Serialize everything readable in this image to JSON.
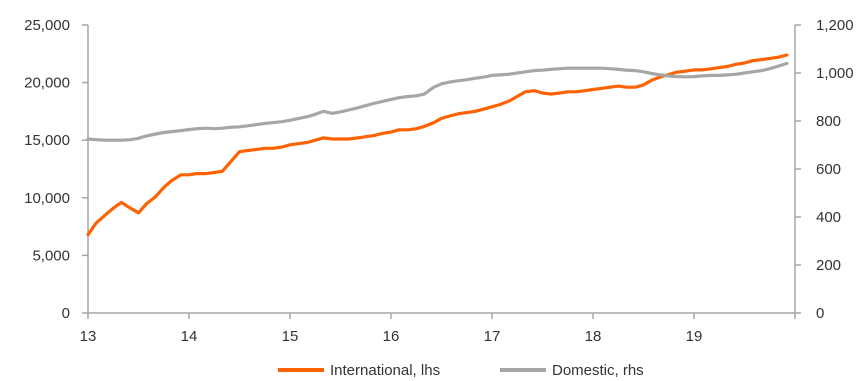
{
  "chart_data": {
    "type": "line",
    "title": "",
    "xlabel": "",
    "ylabel_left": "",
    "ylabel_right": "",
    "x_ticks": [
      "13",
      "14",
      "15",
      "16",
      "17",
      "18",
      "19"
    ],
    "xlim": [
      13,
      20
    ],
    "left_axis": {
      "ylim": [
        0,
        25000
      ],
      "ticks": [
        "0",
        "5,000",
        "10,000",
        "15,000",
        "20,000",
        "25,000"
      ]
    },
    "right_axis": {
      "ylim": [
        0,
        1200
      ],
      "ticks": [
        "0",
        "200",
        "400",
        "600",
        "800",
        "1,000",
        "1,200"
      ]
    },
    "grid": false,
    "legend_position": "bottom",
    "series": [
      {
        "name": "International, lhs",
        "axis": "left",
        "color": "#ff6200",
        "points": [
          [
            13.0,
            6800
          ],
          [
            13.08,
            7800
          ],
          [
            13.17,
            8500
          ],
          [
            13.25,
            9100
          ],
          [
            13.33,
            9600
          ],
          [
            13.42,
            9100
          ],
          [
            13.5,
            8700
          ],
          [
            13.58,
            9500
          ],
          [
            13.67,
            10100
          ],
          [
            13.75,
            10900
          ],
          [
            13.83,
            11500
          ],
          [
            13.92,
            12000
          ],
          [
            14.0,
            12000
          ],
          [
            14.08,
            12100
          ],
          [
            14.17,
            12100
          ],
          [
            14.25,
            12200
          ],
          [
            14.33,
            12300
          ],
          [
            14.42,
            13200
          ],
          [
            14.5,
            14000
          ],
          [
            14.58,
            14100
          ],
          [
            14.67,
            14200
          ],
          [
            14.75,
            14300
          ],
          [
            14.83,
            14300
          ],
          [
            14.92,
            14400
          ],
          [
            15.0,
            14600
          ],
          [
            15.08,
            14700
          ],
          [
            15.17,
            14800
          ],
          [
            15.25,
            15000
          ],
          [
            15.33,
            15200
          ],
          [
            15.42,
            15100
          ],
          [
            15.5,
            15100
          ],
          [
            15.58,
            15100
          ],
          [
            15.67,
            15200
          ],
          [
            15.75,
            15300
          ],
          [
            15.83,
            15400
          ],
          [
            15.92,
            15600
          ],
          [
            16.0,
            15700
          ],
          [
            16.08,
            15900
          ],
          [
            16.17,
            15900
          ],
          [
            16.25,
            16000
          ],
          [
            16.33,
            16200
          ],
          [
            16.42,
            16500
          ],
          [
            16.5,
            16900
          ],
          [
            16.58,
            17100
          ],
          [
            16.67,
            17300
          ],
          [
            16.75,
            17400
          ],
          [
            16.83,
            17500
          ],
          [
            16.92,
            17700
          ],
          [
            17.0,
            17900
          ],
          [
            17.08,
            18100
          ],
          [
            17.17,
            18400
          ],
          [
            17.25,
            18800
          ],
          [
            17.33,
            19200
          ],
          [
            17.42,
            19300
          ],
          [
            17.5,
            19100
          ],
          [
            17.58,
            19000
          ],
          [
            17.67,
            19100
          ],
          [
            17.75,
            19200
          ],
          [
            17.83,
            19200
          ],
          [
            17.92,
            19300
          ],
          [
            18.0,
            19400
          ],
          [
            18.08,
            19500
          ],
          [
            18.17,
            19600
          ],
          [
            18.25,
            19700
          ],
          [
            18.33,
            19600
          ],
          [
            18.42,
            19600
          ],
          [
            18.5,
            19800
          ],
          [
            18.58,
            20200
          ],
          [
            18.67,
            20500
          ],
          [
            18.75,
            20700
          ],
          [
            18.83,
            20900
          ],
          [
            18.92,
            21000
          ],
          [
            19.0,
            21100
          ],
          [
            19.08,
            21100
          ],
          [
            19.17,
            21200
          ],
          [
            19.25,
            21300
          ],
          [
            19.33,
            21400
          ],
          [
            19.42,
            21600
          ],
          [
            19.5,
            21700
          ],
          [
            19.58,
            21900
          ],
          [
            19.67,
            22000
          ],
          [
            19.75,
            22100
          ],
          [
            19.83,
            22200
          ],
          [
            19.92,
            22400
          ]
        ]
      },
      {
        "name": "Domestic, rhs",
        "axis": "right",
        "color": "#a6a6a6",
        "points": [
          [
            13.0,
            725
          ],
          [
            13.08,
            722
          ],
          [
            13.17,
            720
          ],
          [
            13.25,
            720
          ],
          [
            13.33,
            720
          ],
          [
            13.42,
            722
          ],
          [
            13.5,
            728
          ],
          [
            13.58,
            738
          ],
          [
            13.67,
            746
          ],
          [
            13.75,
            752
          ],
          [
            13.83,
            756
          ],
          [
            13.92,
            760
          ],
          [
            14.0,
            764
          ],
          [
            14.08,
            768
          ],
          [
            14.17,
            770
          ],
          [
            14.25,
            768
          ],
          [
            14.33,
            770
          ],
          [
            14.42,
            774
          ],
          [
            14.5,
            776
          ],
          [
            14.58,
            780
          ],
          [
            14.67,
            785
          ],
          [
            14.75,
            790
          ],
          [
            14.83,
            793
          ],
          [
            14.92,
            797
          ],
          [
            15.0,
            803
          ],
          [
            15.08,
            810
          ],
          [
            15.17,
            818
          ],
          [
            15.25,
            828
          ],
          [
            15.33,
            840
          ],
          [
            15.42,
            832
          ],
          [
            15.5,
            838
          ],
          [
            15.58,
            846
          ],
          [
            15.67,
            855
          ],
          [
            15.75,
            864
          ],
          [
            15.83,
            873
          ],
          [
            15.92,
            882
          ],
          [
            16.0,
            890
          ],
          [
            16.08,
            897
          ],
          [
            16.17,
            902
          ],
          [
            16.25,
            905
          ],
          [
            16.33,
            912
          ],
          [
            16.42,
            940
          ],
          [
            16.5,
            955
          ],
          [
            16.58,
            962
          ],
          [
            16.67,
            968
          ],
          [
            16.75,
            972
          ],
          [
            16.83,
            978
          ],
          [
            16.92,
            983
          ],
          [
            17.0,
            990
          ],
          [
            17.08,
            992
          ],
          [
            17.17,
            995
          ],
          [
            17.25,
            1000
          ],
          [
            17.33,
            1005
          ],
          [
            17.42,
            1010
          ],
          [
            17.5,
            1012
          ],
          [
            17.58,
            1015
          ],
          [
            17.67,
            1018
          ],
          [
            17.75,
            1020
          ],
          [
            17.83,
            1020
          ],
          [
            17.92,
            1020
          ],
          [
            18.0,
            1020
          ],
          [
            18.08,
            1020
          ],
          [
            18.17,
            1018
          ],
          [
            18.25,
            1015
          ],
          [
            18.33,
            1012
          ],
          [
            18.42,
            1010
          ],
          [
            18.5,
            1005
          ],
          [
            18.58,
            998
          ],
          [
            18.67,
            992
          ],
          [
            18.75,
            988
          ],
          [
            18.83,
            985
          ],
          [
            18.92,
            984
          ],
          [
            19.0,
            985
          ],
          [
            19.08,
            988
          ],
          [
            19.17,
            990
          ],
          [
            19.25,
            990
          ],
          [
            19.33,
            992
          ],
          [
            19.42,
            995
          ],
          [
            19.5,
            1000
          ],
          [
            19.58,
            1005
          ],
          [
            19.67,
            1010
          ],
          [
            19.75,
            1018
          ],
          [
            19.83,
            1028
          ],
          [
            19.92,
            1040
          ]
        ]
      }
    ]
  },
  "legend": {
    "items": [
      {
        "label": "International, lhs",
        "color": "#ff6200"
      },
      {
        "label": "Domestic, rhs",
        "color": "#a6a6a6"
      }
    ]
  }
}
